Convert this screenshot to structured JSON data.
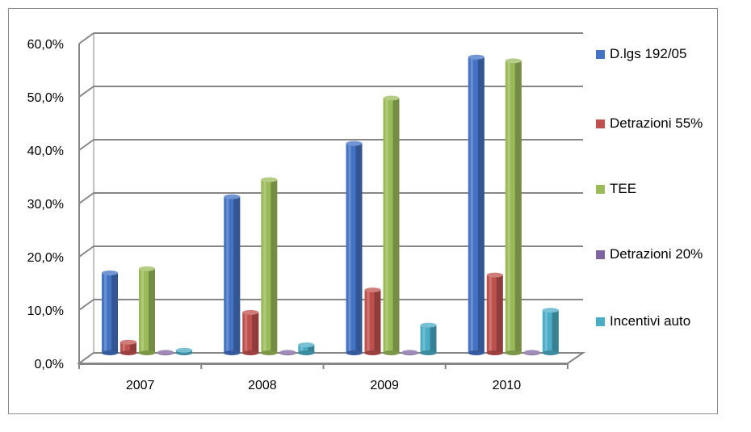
{
  "chart_data": {
    "type": "bar",
    "categories": [
      "2007",
      "2008",
      "2009",
      "2010"
    ],
    "series": [
      {
        "name": "D.lgs 192/05",
        "color": "#4472c4",
        "values": [
          15.0,
          29.3,
          39.3,
          55.5
        ]
      },
      {
        "name": "Detrazioni 55%",
        "color": "#c0504d",
        "values": [
          2.0,
          7.6,
          11.8,
          14.6
        ]
      },
      {
        "name": "TEE",
        "color": "#9bbb59",
        "values": [
          15.8,
          32.5,
          47.8,
          54.8
        ]
      },
      {
        "name": "Detrazioni 20%",
        "color": "#8064a2",
        "values": [
          0.1,
          0.1,
          0.1,
          0.1
        ]
      },
      {
        "name": "Incentivi auto",
        "color": "#4bacc6",
        "values": [
          0.5,
          1.5,
          5.2,
          8.0
        ]
      }
    ],
    "yticks": [
      "0,0%",
      "10,0%",
      "20,0%",
      "30,0%",
      "40,0%",
      "50,0%",
      "60,0%"
    ],
    "ylim": [
      0,
      60
    ],
    "grid": true,
    "legend_position": "right",
    "title": "",
    "xlabel": "",
    "ylabel": ""
  }
}
